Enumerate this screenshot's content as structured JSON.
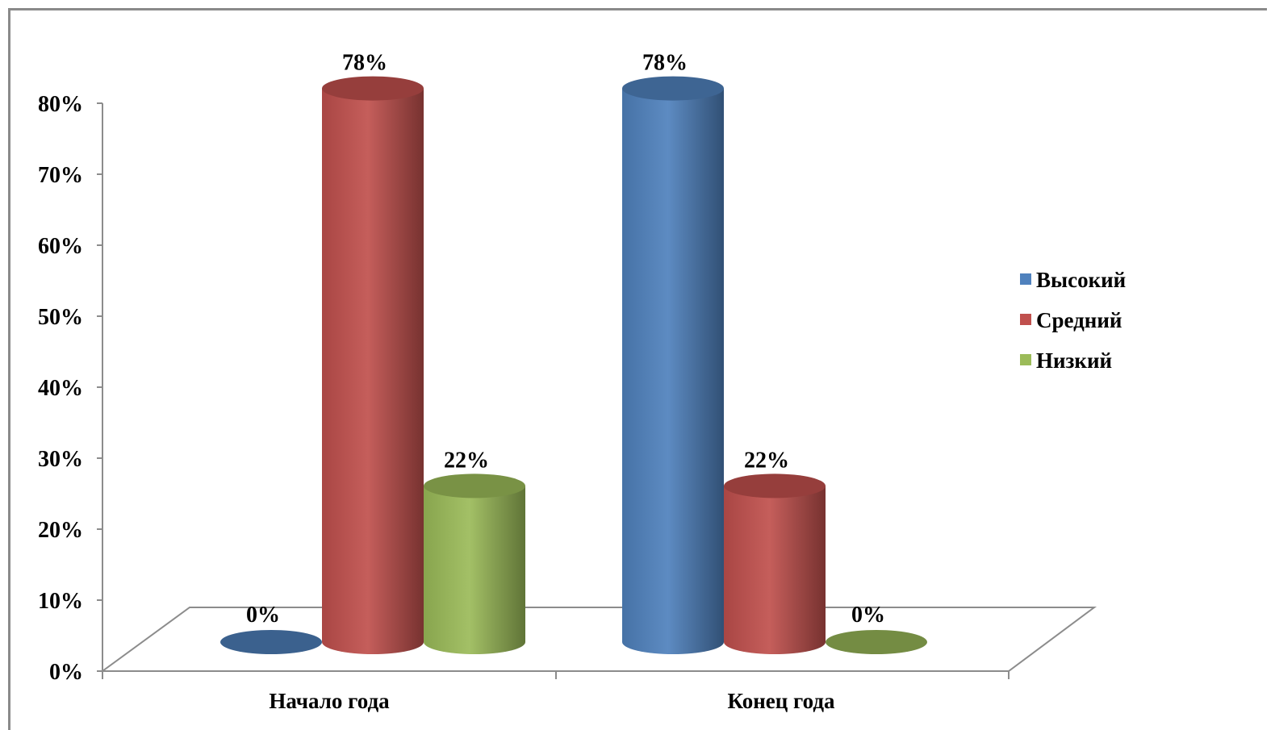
{
  "chart_data": {
    "type": "bar",
    "categories": [
      "Начало года",
      "Конец года"
    ],
    "series": [
      {
        "name": "Высокий",
        "values": [
          0,
          78
        ],
        "color": "#4f81bd"
      },
      {
        "name": "Средний",
        "values": [
          78,
          22
        ],
        "color": "#c0504d"
      },
      {
        "name": "Низкий",
        "values": [
          22,
          0
        ],
        "color": "#9bbb59"
      }
    ],
    "data_labels": [
      [
        "0%",
        "78%"
      ],
      [
        "78%",
        "22%"
      ],
      [
        "22%",
        "0%"
      ]
    ],
    "y_ticks": [
      "0%",
      "10%",
      "20%",
      "30%",
      "40%",
      "50%",
      "60%",
      "70%",
      "80%"
    ],
    "ylim": [
      0,
      80
    ],
    "style": "3d-cylinder",
    "legend_position": "right",
    "grid": false
  }
}
